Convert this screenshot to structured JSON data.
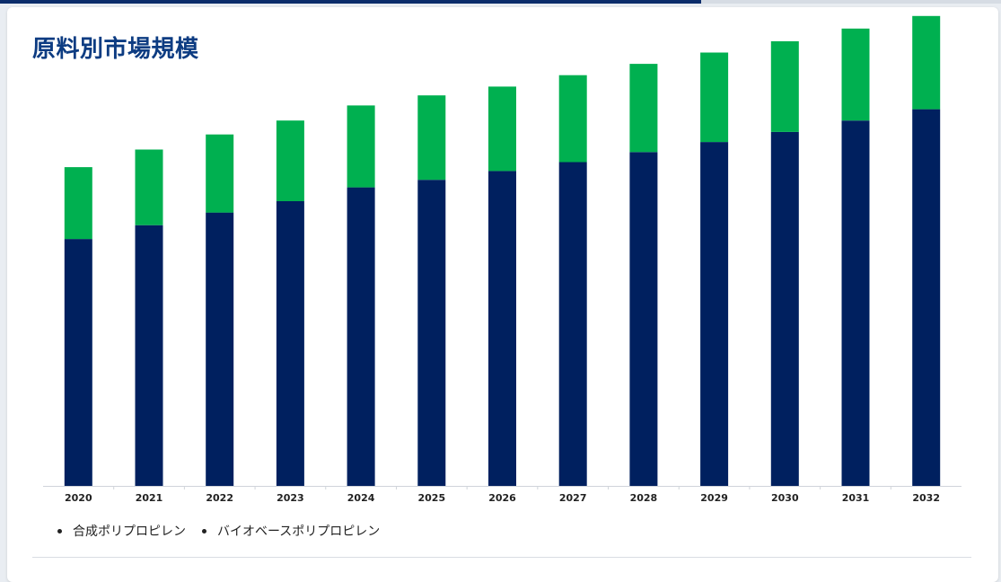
{
  "page": {
    "top_progress": 0.7
  },
  "card": {
    "title": "原料別市場規模"
  },
  "colors": {
    "synthetic": "#00205f",
    "bio": "#00b050",
    "title": "#0d3c82"
  },
  "chart_data": {
    "type": "bar",
    "stacked": true,
    "title": "原料別市場規模",
    "xlabel": "",
    "ylabel": "",
    "categories": [
      "2020",
      "2021",
      "2022",
      "2023",
      "2024",
      "2025",
      "2026",
      "2027",
      "2028",
      "2029",
      "2030",
      "2031",
      "2032"
    ],
    "series": [
      {
        "name": "合成ポリプロピレン",
        "color": "#00205f",
        "values": [
          196,
          207,
          217,
          226,
          237,
          243,
          250,
          257,
          265,
          273,
          281,
          290,
          299
        ]
      },
      {
        "name": "バイオベースポリプロピレン",
        "color": "#00b050",
        "values": [
          57,
          60,
          62,
          64,
          65,
          67,
          67,
          69,
          70,
          71,
          72,
          73,
          74
        ]
      }
    ],
    "ylim": [
      0,
      380
    ],
    "grid": false,
    "legend_position": "bottom-left"
  }
}
